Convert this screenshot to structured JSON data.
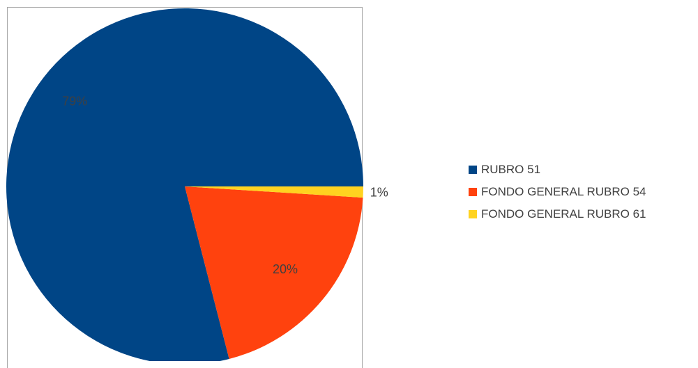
{
  "chart_data": {
    "type": "pie",
    "title": "",
    "start_angle_deg": 0,
    "direction": "counterclockwise",
    "legend_position": "right",
    "slices": [
      {
        "name": "RUBRO 51",
        "value": 79,
        "label": "79%",
        "color": "#004586"
      },
      {
        "name": "FONDO GENERAL RUBRO 54",
        "value": 20,
        "label": "20%",
        "color": "#ff420e"
      },
      {
        "name": "FONDO GENERAL RUBRO 61",
        "value": 1,
        "label": "1%",
        "color": "#ffd320"
      }
    ]
  }
}
